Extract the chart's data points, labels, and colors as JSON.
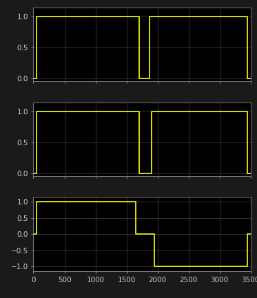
{
  "background_color": "#1a1a1a",
  "axes_bg_color": "#000000",
  "spine_color": "#888888",
  "grid_color": "#444444",
  "line_color": "#ffff00",
  "line_width": 1.2,
  "xlim": [
    0,
    3500
  ],
  "xticks": [
    0,
    500,
    1000,
    1500,
    2000,
    2500,
    3000,
    3500
  ],
  "tick_color": "#cccccc",
  "tick_labelsize": 7.5,
  "subplot1": {
    "ylim": [
      -0.05,
      1.15
    ],
    "yticks": [
      0,
      0.5,
      1
    ],
    "signal": [
      [
        0,
        0
      ],
      [
        50,
        0
      ],
      [
        50,
        1
      ],
      [
        1700,
        1
      ],
      [
        1700,
        0
      ],
      [
        1870,
        0
      ],
      [
        1870,
        1
      ],
      [
        3450,
        1
      ],
      [
        3450,
        0
      ],
      [
        3500,
        0
      ]
    ]
  },
  "subplot2": {
    "ylim": [
      -0.05,
      1.15
    ],
    "yticks": [
      0,
      0.5,
      1
    ],
    "signal": [
      [
        0,
        0
      ],
      [
        50,
        0
      ],
      [
        50,
        1
      ],
      [
        1700,
        1
      ],
      [
        1700,
        0
      ],
      [
        1900,
        0
      ],
      [
        1900,
        1
      ],
      [
        3450,
        1
      ],
      [
        3450,
        0
      ],
      [
        3500,
        0
      ]
    ]
  },
  "subplot3": {
    "ylim": [
      -1.15,
      1.15
    ],
    "yticks": [
      -1,
      -0.5,
      0,
      0.5,
      1
    ],
    "signal": [
      [
        0,
        0
      ],
      [
        50,
        0
      ],
      [
        50,
        1
      ],
      [
        1650,
        1
      ],
      [
        1650,
        0
      ],
      [
        1950,
        0
      ],
      [
        1950,
        -1
      ],
      [
        3450,
        -1
      ],
      [
        3450,
        0
      ],
      [
        3500,
        0
      ]
    ]
  }
}
